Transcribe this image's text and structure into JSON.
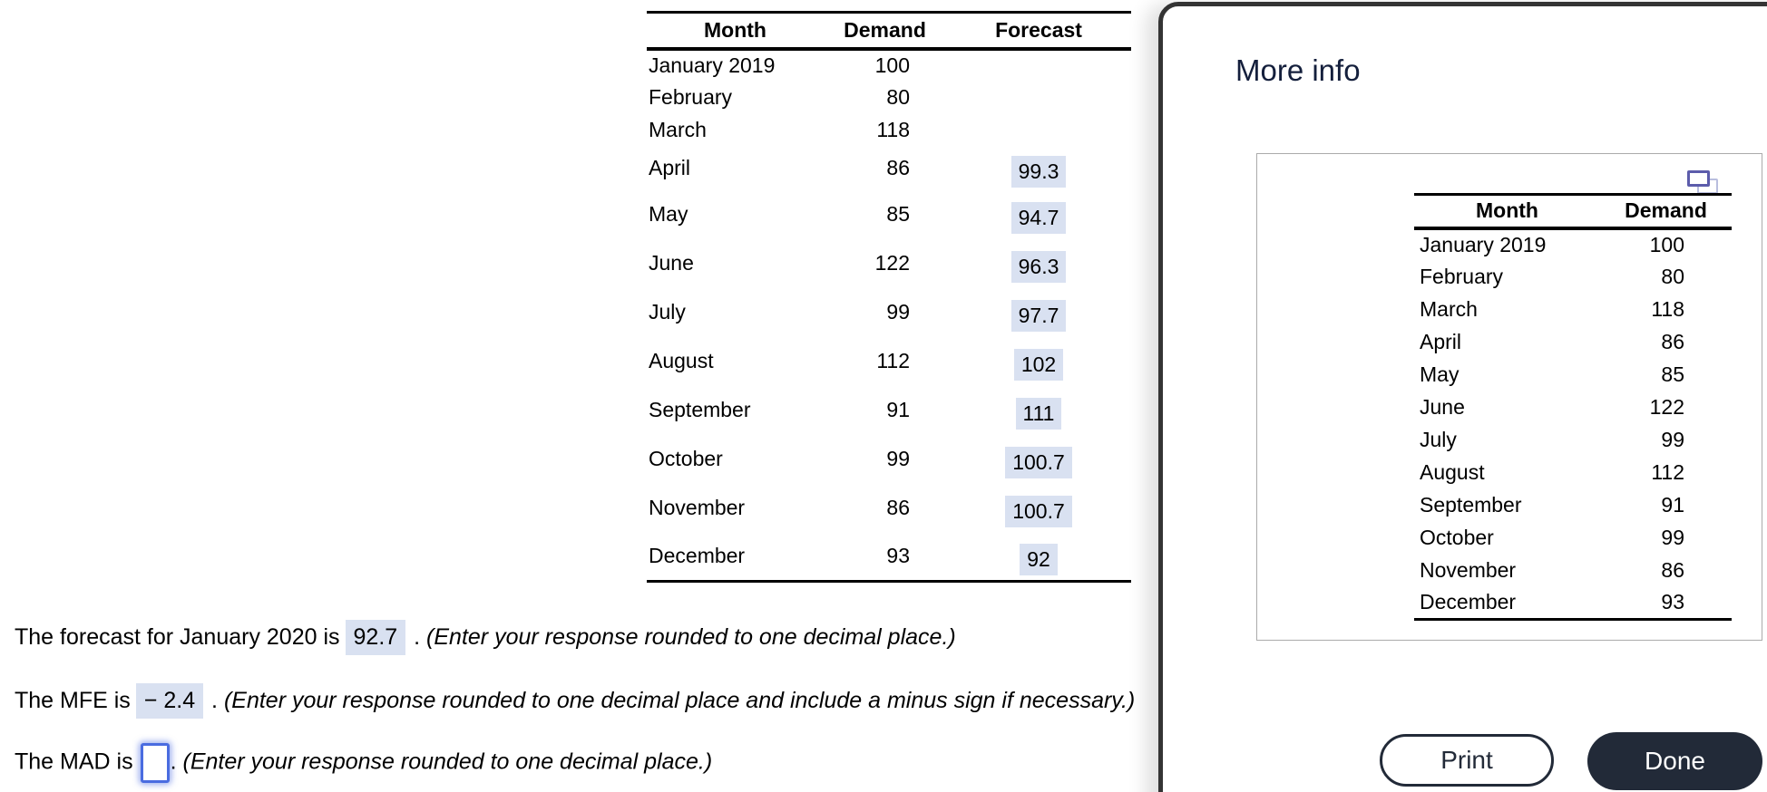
{
  "main_table": {
    "headers": [
      "Month",
      "Demand",
      "Forecast"
    ],
    "rows": [
      {
        "month": "January 2019",
        "demand": "100",
        "forecast": ""
      },
      {
        "month": "February",
        "demand": "80",
        "forecast": ""
      },
      {
        "month": "March",
        "demand": "118",
        "forecast": ""
      },
      {
        "month": "April",
        "demand": "86",
        "forecast": "99.3"
      },
      {
        "month": "May",
        "demand": "85",
        "forecast": "94.7"
      },
      {
        "month": "June",
        "demand": "122",
        "forecast": "96.3"
      },
      {
        "month": "July",
        "demand": "99",
        "forecast": "97.7"
      },
      {
        "month": "August",
        "demand": "112",
        "forecast": "102"
      },
      {
        "month": "September",
        "demand": "91",
        "forecast": "111"
      },
      {
        "month": "October",
        "demand": "99",
        "forecast": "100.7"
      },
      {
        "month": "November",
        "demand": "86",
        "forecast": "100.7"
      },
      {
        "month": "December",
        "demand": "93",
        "forecast": "92"
      }
    ]
  },
  "questions": {
    "forecast": {
      "prefix": "The forecast for January 2020 is",
      "value": "92.7",
      "sep": " . ",
      "note": "(Enter your response rounded to one decimal place.)"
    },
    "mfe": {
      "prefix": "The MFE is",
      "value": "− 2.4",
      "sep": " . ",
      "note": "(Enter your response rounded to one decimal place and include a minus sign if necessary.)"
    },
    "mad": {
      "prefix": "The MAD is",
      "input_value": "",
      "sep": ". ",
      "note": "(Enter your response rounded to one decimal place.)"
    }
  },
  "modal": {
    "title": "More info",
    "popout_icon": "duplicate-window-icon",
    "table": {
      "headers": [
        "Month",
        "Demand"
      ],
      "rows": [
        {
          "month": "January 2019",
          "demand": "100"
        },
        {
          "month": "February",
          "demand": "80"
        },
        {
          "month": "March",
          "demand": "118"
        },
        {
          "month": "April",
          "demand": "86"
        },
        {
          "month": "May",
          "demand": "85"
        },
        {
          "month": "June",
          "demand": "122"
        },
        {
          "month": "July",
          "demand": "99"
        },
        {
          "month": "August",
          "demand": "112"
        },
        {
          "month": "September",
          "demand": "91"
        },
        {
          "month": "October",
          "demand": "99"
        },
        {
          "month": "November",
          "demand": "86"
        },
        {
          "month": "December",
          "demand": "93"
        }
      ]
    },
    "buttons": {
      "print": "Print",
      "done": "Done"
    }
  },
  "colors": {
    "highlight_bg": "#d9e1f1",
    "input_focus_blue": "#4a6ce0",
    "modal_border": "#343434",
    "title_navy": "#141f3c",
    "button_dark": "#222a38",
    "info_box_border": "#ababab",
    "icon_front": "#5c5cab",
    "icon_back": "#b9bede"
  }
}
